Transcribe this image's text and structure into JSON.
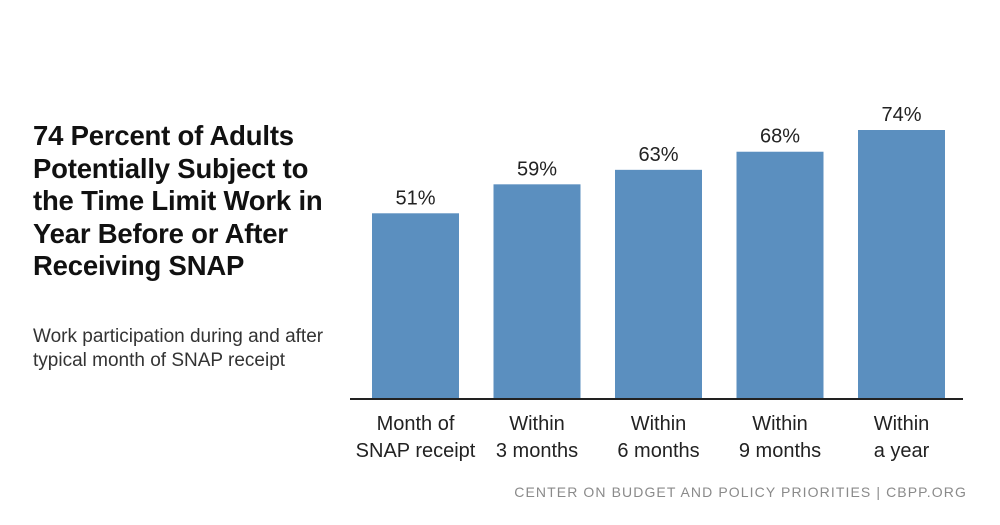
{
  "title": "74 Percent of Adults Potentially Subject to the Time Limit Work in Year Before or After Receiving SNAP",
  "subtitle": "Work participation during and after typical month of SNAP receipt",
  "source": "CENTER ON BUDGET AND POLICY PRIORITIES | CBPP.ORG",
  "colors": {
    "bar": "#5b8fbf",
    "axis": "#222222",
    "label": "#222222"
  },
  "chart_data": {
    "type": "bar",
    "categories": [
      [
        "Month of",
        "SNAP receipt"
      ],
      [
        "Within",
        "3 months"
      ],
      [
        "Within",
        "6 months"
      ],
      [
        "Within",
        "9 months"
      ],
      [
        "Within",
        "a year"
      ]
    ],
    "values": [
      51,
      59,
      63,
      68,
      74
    ],
    "value_labels": [
      "51%",
      "59%",
      "63%",
      "68%",
      "74%"
    ],
    "unit": "%",
    "title": "74 Percent of Adults Potentially Subject to the Time Limit Work in Year Before or After Receiving SNAP",
    "xlabel": "",
    "ylabel": "",
    "ylim": [
      0,
      74
    ],
    "grid": false,
    "legend": "none"
  }
}
